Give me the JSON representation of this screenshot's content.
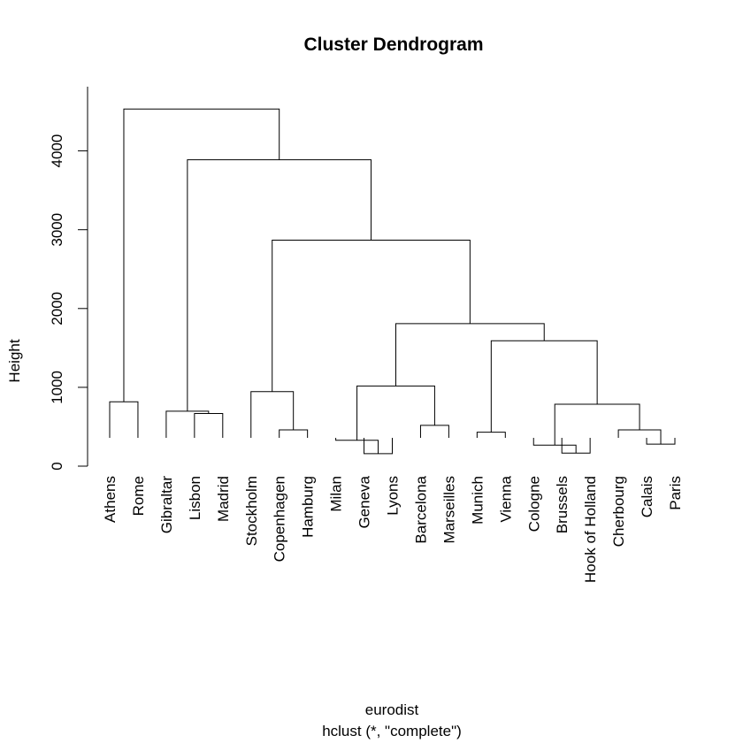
{
  "chart_data": {
    "type": "dendrogram",
    "title": "Cluster Dendrogram",
    "xlabel": "eurodist",
    "sublabel": "hclust (*, \"complete\")",
    "ylabel": "Height",
    "ylim": [
      0,
      4800
    ],
    "yticks": [
      0,
      1000,
      2000,
      3000,
      4000
    ],
    "leaves": [
      "Athens",
      "Rome",
      "Gibraltar",
      "Lisbon",
      "Madrid",
      "Stockholm",
      "Copenhagen",
      "Hamburg",
      "Milan",
      "Geneva",
      "Lyons",
      "Barcelona",
      "Marseilles",
      "Munich",
      "Vienna",
      "Cologne",
      "Brussels",
      "Hook of Holland",
      "Cherbourg",
      "Calais",
      "Paris"
    ],
    "merges": [
      {
        "id": "m1",
        "left": "L:Athens",
        "right": "L:Rome",
        "height": 817
      },
      {
        "id": "m2",
        "left": "L:Lisbon",
        "right": "L:Madrid",
        "height": 668
      },
      {
        "id": "m3",
        "left": "L:Gibraltar",
        "right": "m2",
        "height": 697
      },
      {
        "id": "m4",
        "left": "L:Copenhagen",
        "right": "L:Hamburg",
        "height": 460
      },
      {
        "id": "m5",
        "left": "L:Stockholm",
        "right": "m4",
        "height": 946
      },
      {
        "id": "m6",
        "left": "L:Geneva",
        "right": "L:Lyons",
        "height": 158
      },
      {
        "id": "m7",
        "left": "L:Milan",
        "right": "m6",
        "height": 328
      },
      {
        "id": "m8",
        "left": "L:Barcelona",
        "right": "L:Marseilles",
        "height": 517
      },
      {
        "id": "m9",
        "left": "m7",
        "right": "m8",
        "height": 1017
      },
      {
        "id": "m10",
        "left": "L:Munich",
        "right": "L:Vienna",
        "height": 430
      },
      {
        "id": "m11",
        "left": "L:Brussels",
        "right": "L:Hook of Holland",
        "height": 165
      },
      {
        "id": "m12",
        "left": "L:Cologne",
        "right": "m11",
        "height": 267
      },
      {
        "id": "m13",
        "left": "L:Calais",
        "right": "L:Paris",
        "height": 279
      },
      {
        "id": "m14",
        "left": "L:Cherbourg",
        "right": "m13",
        "height": 460
      },
      {
        "id": "m15",
        "left": "m12",
        "right": "m14",
        "height": 785
      },
      {
        "id": "m16",
        "left": "m10",
        "right": "m15",
        "height": 1591
      },
      {
        "id": "m17",
        "left": "m9",
        "right": "m16",
        "height": 1808
      },
      {
        "id": "m18",
        "left": "m5",
        "right": "m17",
        "height": 2867
      },
      {
        "id": "m19",
        "left": "m3",
        "right": "m18",
        "height": 3888
      },
      {
        "id": "m20",
        "left": "m1",
        "right": "m19",
        "height": 4532
      }
    ]
  }
}
